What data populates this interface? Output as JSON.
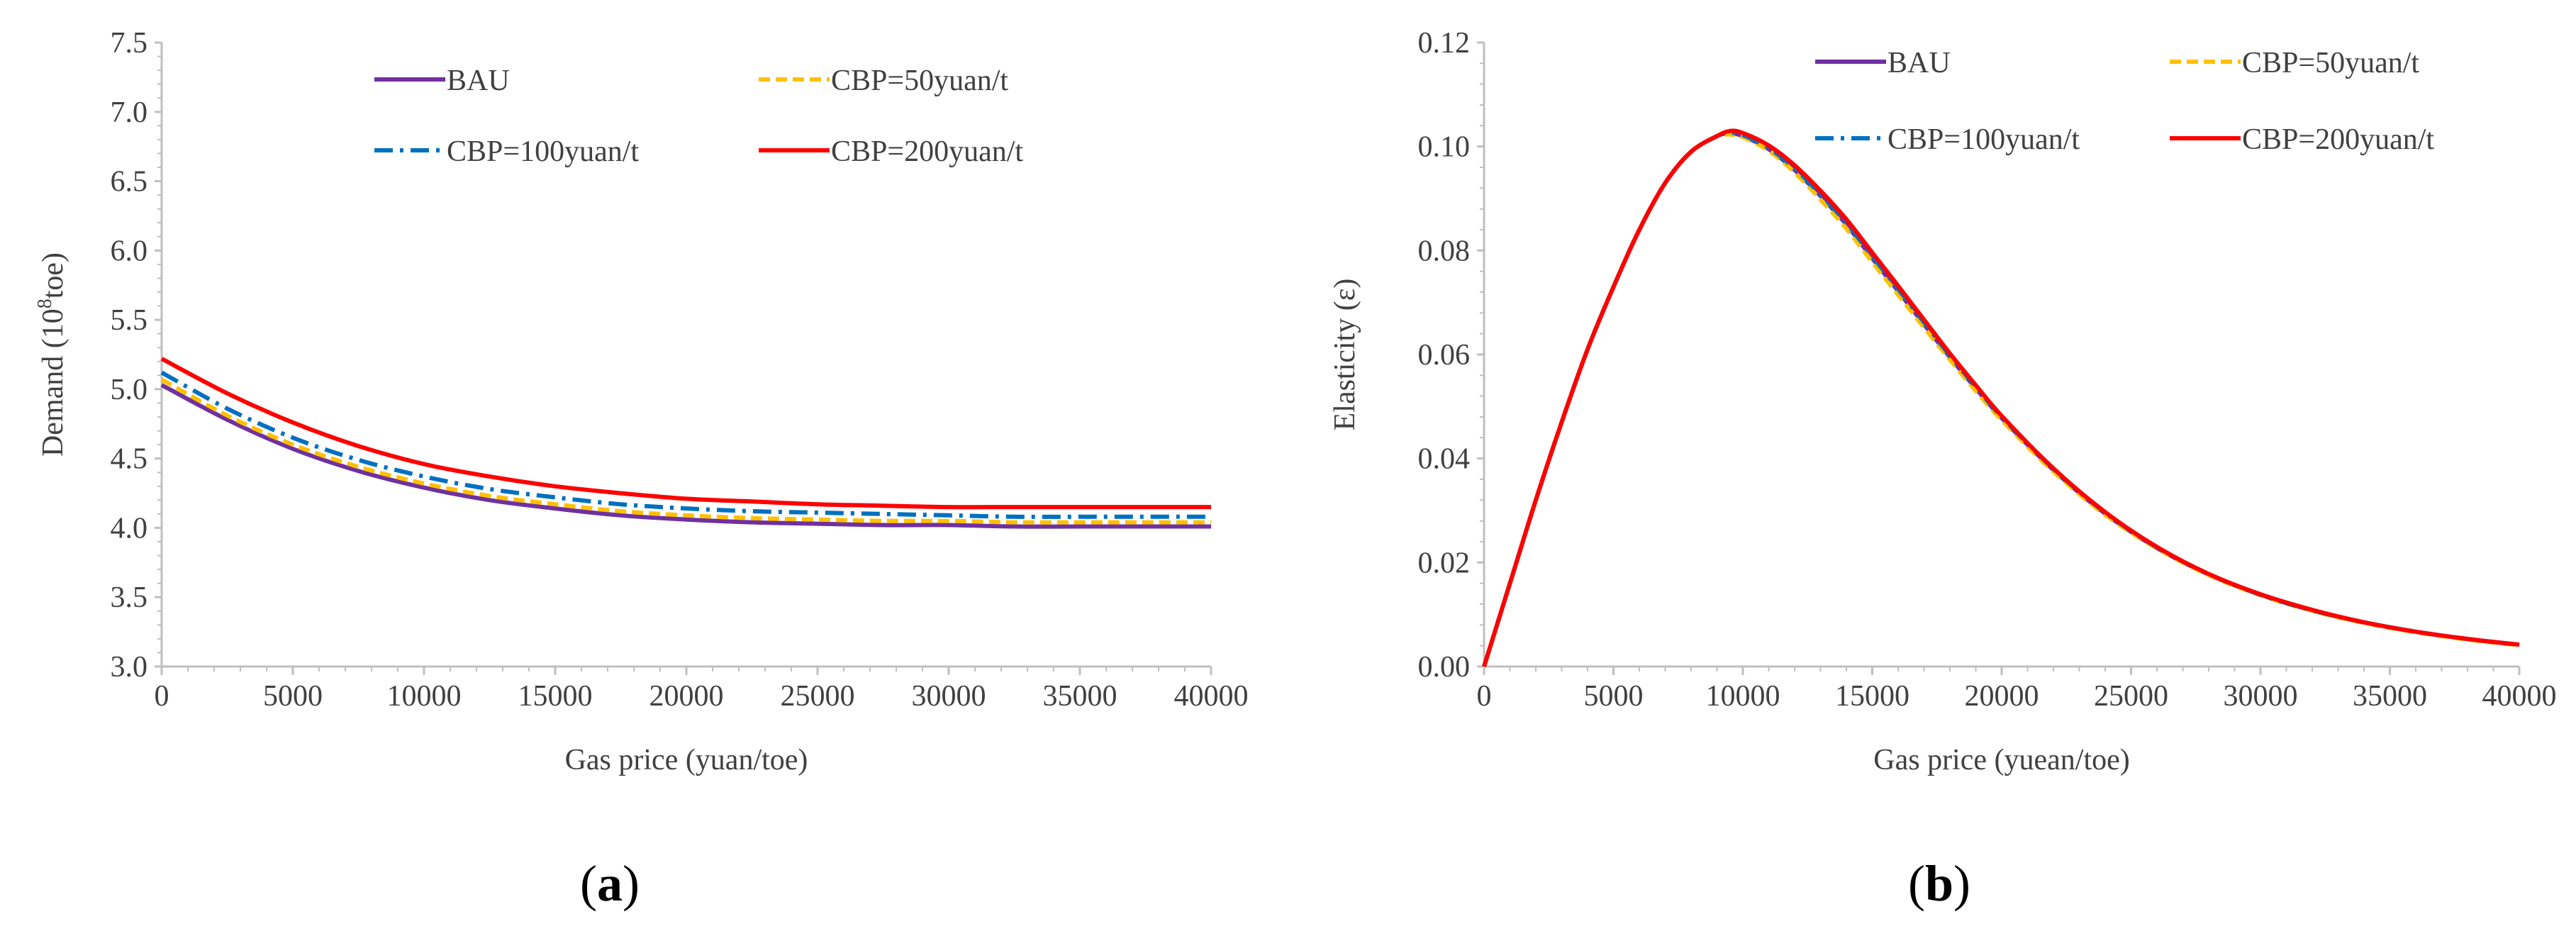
{
  "chart_data": [
    {
      "type": "line",
      "panel_label": "(a)",
      "panel_letter": "a",
      "xlabel": "Gas price (yuan/toe)",
      "ylabel": "Demand (10⁸toe)",
      "xlim": [
        0,
        40000
      ],
      "ylim": [
        3.0,
        7.5
      ],
      "x_ticks": [
        "0",
        "5000",
        "10000",
        "15000",
        "20000",
        "25000",
        "30000",
        "35000",
        "40000"
      ],
      "y_ticks": [
        "3.0",
        "3.5",
        "4.0",
        "4.5",
        "5.0",
        "5.5",
        "6.0",
        "6.5",
        "7.0",
        "7.5"
      ],
      "x": [
        0,
        2500,
        5000,
        7500,
        10000,
        12500,
        15000,
        17500,
        20000,
        22500,
        25000,
        27500,
        30000,
        32500,
        35000,
        37500,
        40000
      ],
      "series": [
        {
          "name": "BAU",
          "color": "#7030a0",
          "dash": "solid",
          "values": [
            5.03,
            4.78,
            4.57,
            4.41,
            4.29,
            4.2,
            4.14,
            4.09,
            4.06,
            4.04,
            4.03,
            4.02,
            4.02,
            4.01,
            4.01,
            4.01,
            4.01
          ]
        },
        {
          "name": "CBP=50yuan/t",
          "color": "#ffc000",
          "dash": "dash",
          "values": [
            5.07,
            4.81,
            4.6,
            4.44,
            4.32,
            4.23,
            4.17,
            4.12,
            4.09,
            4.07,
            4.06,
            4.05,
            4.05,
            4.04,
            4.04,
            4.04,
            4.04
          ]
        },
        {
          "name": "CBP=100yuan/t",
          "color": "#0070c0",
          "dash": "dashdot",
          "values": [
            5.12,
            4.86,
            4.65,
            4.49,
            4.37,
            4.28,
            4.22,
            4.17,
            4.14,
            4.12,
            4.11,
            4.1,
            4.09,
            4.08,
            4.08,
            4.08,
            4.08
          ]
        },
        {
          "name": "CBP=200yuan/t",
          "color": "#ff0000",
          "dash": "solid",
          "values": [
            5.22,
            4.97,
            4.76,
            4.59,
            4.46,
            4.37,
            4.3,
            4.25,
            4.21,
            4.19,
            4.17,
            4.16,
            4.15,
            4.15,
            4.15,
            4.15,
            4.15
          ]
        }
      ]
    },
    {
      "type": "line",
      "panel_label": "(b)",
      "panel_letter": "b",
      "xlabel": "Gas price (yuean/toe)",
      "ylabel": "Elasticity (ε)",
      "xlim": [
        0,
        40000
      ],
      "ylim": [
        0,
        0.12
      ],
      "x_ticks": [
        "0",
        "5000",
        "10000",
        "15000",
        "20000",
        "25000",
        "30000",
        "35000",
        "40000"
      ],
      "y_ticks": [
        "0.00",
        "0.02",
        "0.04",
        "0.06",
        "0.08",
        "0.10",
        "0.12"
      ],
      "x": [
        0,
        1000,
        2000,
        3000,
        4000,
        5000,
        6000,
        7000,
        8000,
        9000,
        9500,
        10000,
        11000,
        12000,
        13000,
        14000,
        15000,
        16000,
        17000,
        18000,
        19000,
        20000,
        22000,
        24000,
        26000,
        28000,
        30000,
        32000,
        34000,
        36000,
        38000,
        40000
      ],
      "series": [
        {
          "name": "BAU",
          "color": "#7030a0",
          "dash": "solid",
          "values": [
            0.0,
            0.016,
            0.032,
            0.047,
            0.061,
            0.073,
            0.084,
            0.093,
            0.099,
            0.102,
            0.1025,
            0.102,
            0.0995,
            0.0955,
            0.0905,
            0.085,
            0.0785,
            0.0722,
            0.0658,
            0.0595,
            0.0535,
            0.0478,
            0.0378,
            0.0294,
            0.0228,
            0.0177,
            0.0138,
            0.0108,
            0.0085,
            0.0067,
            0.0053,
            0.0042
          ]
        },
        {
          "name": "CBP=50yuan/t",
          "color": "#ffc000",
          "dash": "dash",
          "values": [
            0.0,
            0.016,
            0.032,
            0.047,
            0.061,
            0.073,
            0.084,
            0.093,
            0.099,
            0.102,
            0.1023,
            0.1018,
            0.0992,
            0.095,
            0.0898,
            0.0842,
            0.0778,
            0.0715,
            0.0652,
            0.059,
            0.053,
            0.0474,
            0.0375,
            0.0292,
            0.0227,
            0.0176,
            0.0137,
            0.0107,
            0.0084,
            0.0066,
            0.0052,
            0.0041
          ]
        },
        {
          "name": "CBP=100yuan/t",
          "color": "#0070c0",
          "dash": "dashdot",
          "values": [
            0.0,
            0.016,
            0.032,
            0.047,
            0.061,
            0.073,
            0.084,
            0.093,
            0.099,
            0.102,
            0.1026,
            0.1022,
            0.0997,
            0.0958,
            0.0908,
            0.0853,
            0.0789,
            0.0726,
            0.0662,
            0.0598,
            0.0538,
            0.048,
            0.038,
            0.0296,
            0.0229,
            0.0178,
            0.0138,
            0.0108,
            0.0085,
            0.0067,
            0.0053,
            0.0042
          ]
        },
        {
          "name": "CBP=200yuan/t",
          "color": "#ff0000",
          "dash": "solid",
          "values": [
            0.0,
            0.016,
            0.032,
            0.047,
            0.061,
            0.073,
            0.084,
            0.093,
            0.099,
            0.102,
            0.103,
            0.1026,
            0.1002,
            0.0964,
            0.0915,
            0.086,
            0.0796,
            0.0732,
            0.0667,
            0.0602,
            0.0541,
            0.0482,
            0.0381,
            0.0297,
            0.023,
            0.0178,
            0.0139,
            0.0109,
            0.0085,
            0.0067,
            0.0053,
            0.0042
          ]
        }
      ]
    }
  ]
}
